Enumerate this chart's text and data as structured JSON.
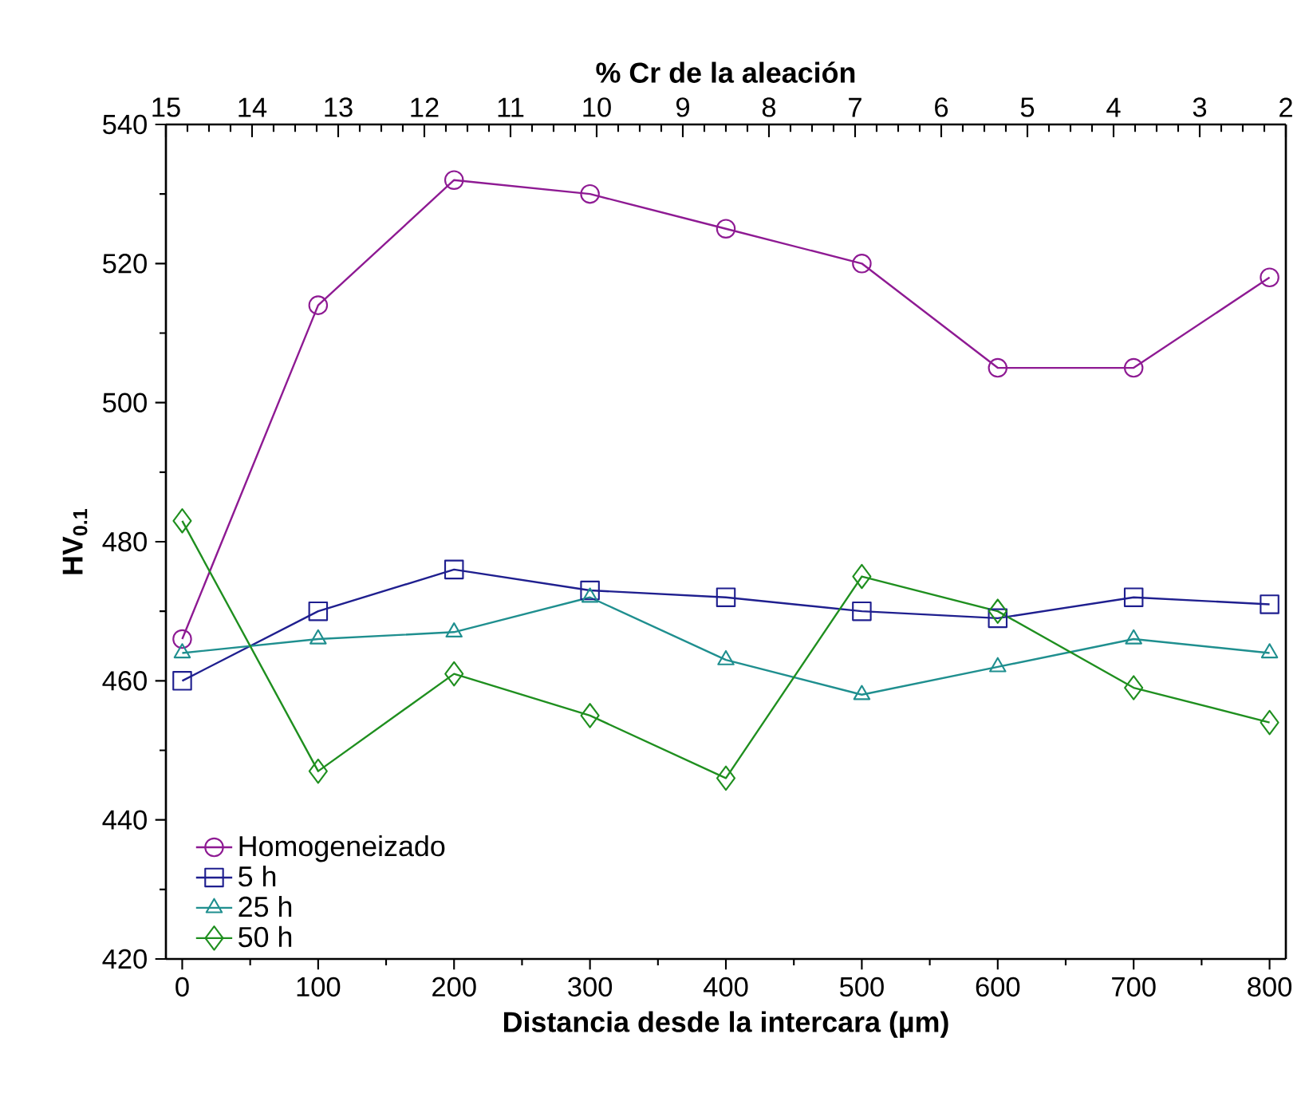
{
  "chart_data": {
    "type": "line",
    "xlabel": "Distancia desde la intercara (µm)",
    "ylabel": "HV$_{0.1}$",
    "x2label": "% Cr de la aleación",
    "x": [
      0,
      100,
      200,
      300,
      400,
      500,
      600,
      700,
      800
    ],
    "xlim": [
      -12,
      812
    ],
    "xticks": [
      0,
      100,
      200,
      300,
      400,
      500,
      600,
      700,
      800
    ],
    "ylim": [
      420,
      540
    ],
    "yticks": [
      420,
      440,
      460,
      480,
      500,
      520,
      540
    ],
    "x2lim": [
      15,
      2
    ],
    "x2ticks": [
      15,
      14,
      13,
      12,
      11,
      10,
      9,
      8,
      7,
      6,
      5,
      4,
      3,
      2
    ],
    "grid": false,
    "legend": "bottom left",
    "line_style": "solid",
    "series": [
      {
        "name": "Homogeneizado",
        "color": "#8e1a93",
        "marker": "circle",
        "values": [
          466,
          514,
          532,
          530,
          525,
          520,
          505,
          505,
          518
        ]
      },
      {
        "name": "5 h",
        "color": "#1f1f8f",
        "marker": "square",
        "values": [
          460,
          470,
          476,
          473,
          472,
          470,
          469,
          472,
          471
        ]
      },
      {
        "name": "25 h",
        "color": "#1f8f8f",
        "marker": "triangle",
        "values": [
          464,
          466,
          467,
          472,
          463,
          458,
          462,
          466,
          464
        ]
      },
      {
        "name": "50 h",
        "color": "#1f8f1f",
        "marker": "diamond",
        "values": [
          483,
          447,
          461,
          455,
          446,
          475,
          470,
          459,
          454
        ]
      }
    ]
  }
}
